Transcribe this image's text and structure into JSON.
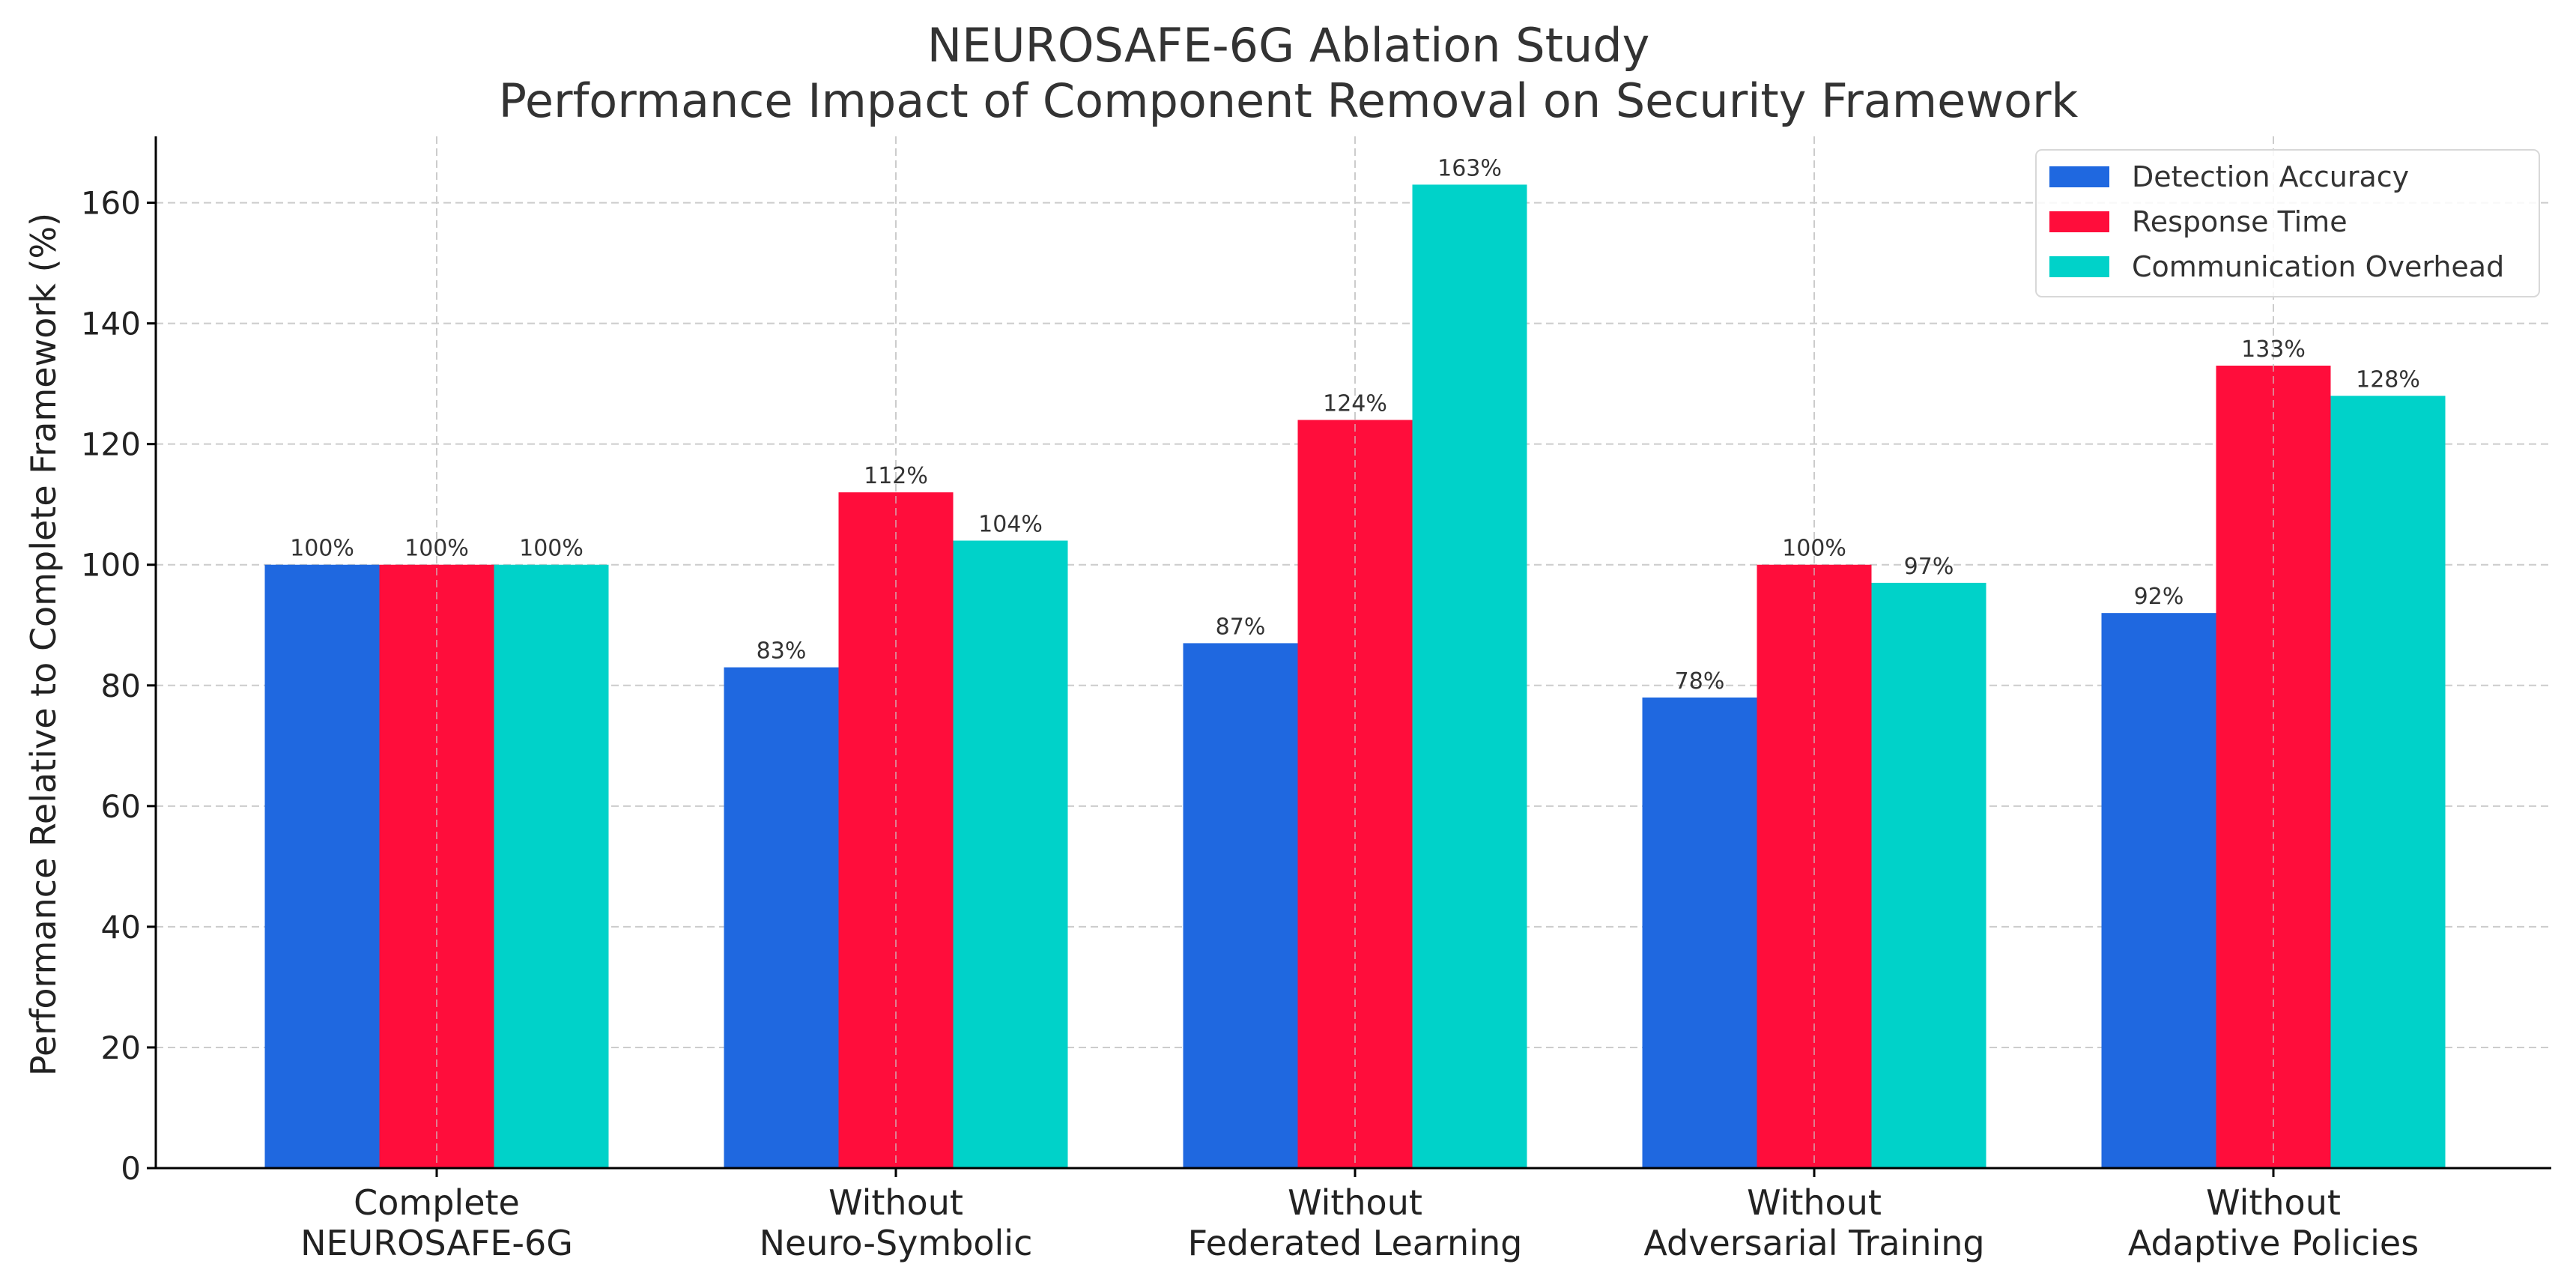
{
  "chart_data": {
    "type": "bar",
    "title_lines": [
      "NEUROSAFE-6G Ablation Study",
      "Performance Impact of Component Removal on Security Framework"
    ],
    "xlabel": "",
    "ylabel": "Performance Relative to Complete Framework (%)",
    "ylim": [
      0,
      171
    ],
    "yticks": [
      0,
      20,
      40,
      60,
      80,
      100,
      120,
      140,
      160
    ],
    "grid": true,
    "legend_position": "top-right",
    "categories": [
      [
        "Complete",
        "NEUROSAFE-6G"
      ],
      [
        "Without",
        "Neuro-Symbolic"
      ],
      [
        "Without",
        "Federated Learning"
      ],
      [
        "Without",
        "Adversarial Training"
      ],
      [
        "Without",
        "Adaptive Policies"
      ]
    ],
    "series": [
      {
        "name": "Detection Accuracy",
        "color": "#1f68e0",
        "values": [
          100,
          83,
          87,
          78,
          92
        ],
        "labels": [
          "100%",
          "83%",
          "87%",
          "78%",
          "92%"
        ]
      },
      {
        "name": "Response Time",
        "color": "#ff0d3b",
        "values": [
          100,
          112,
          124,
          100,
          133
        ],
        "labels": [
          "100%",
          "112%",
          "124%",
          "100%",
          "133%"
        ]
      },
      {
        "name": "Communication Overhead",
        "color": "#00d2c9",
        "values": [
          100,
          104,
          163,
          97,
          128
        ],
        "labels": [
          "100%",
          "104%",
          "163%",
          "97%",
          "128%"
        ]
      }
    ]
  }
}
